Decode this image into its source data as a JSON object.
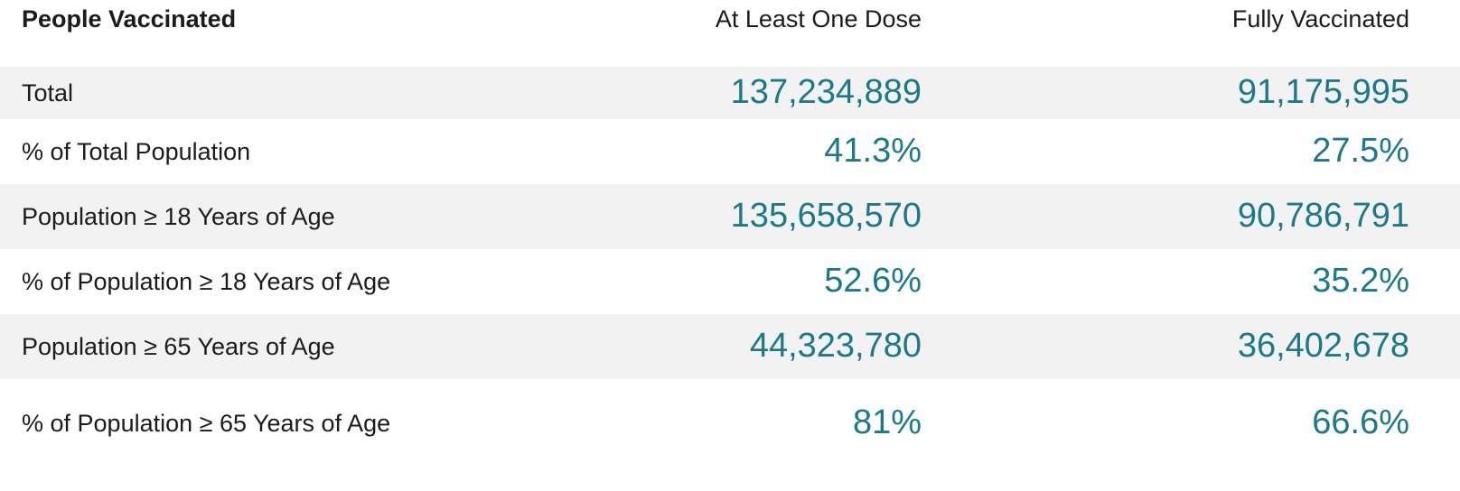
{
  "colors": {
    "accent": "#1a7a8a",
    "row_shade": "#f2f2f2",
    "text": "#1b1b1b"
  },
  "header": {
    "label": "People Vaccinated",
    "col1": "At Least One Dose",
    "col2": "Fully Vaccinated"
  },
  "rows": [
    {
      "label": "Total",
      "col1": "137,234,889",
      "col2": "91,175,995"
    },
    {
      "label": "% of Total Population",
      "col1": "41.3%",
      "col2": "27.5%"
    },
    {
      "label": "Population ≥ 18 Years of Age",
      "col1": "135,658,570",
      "col2": "90,786,791"
    },
    {
      "label": "% of Population ≥ 18 Years of Age",
      "col1": "52.6%",
      "col2": "35.2%"
    },
    {
      "label": "Population ≥ 65 Years of Age",
      "col1": "44,323,780",
      "col2": "36,402,678"
    },
    {
      "label": "% of Population ≥ 65 Years of Age",
      "col1": "81%",
      "col2": "66.6%"
    }
  ]
}
